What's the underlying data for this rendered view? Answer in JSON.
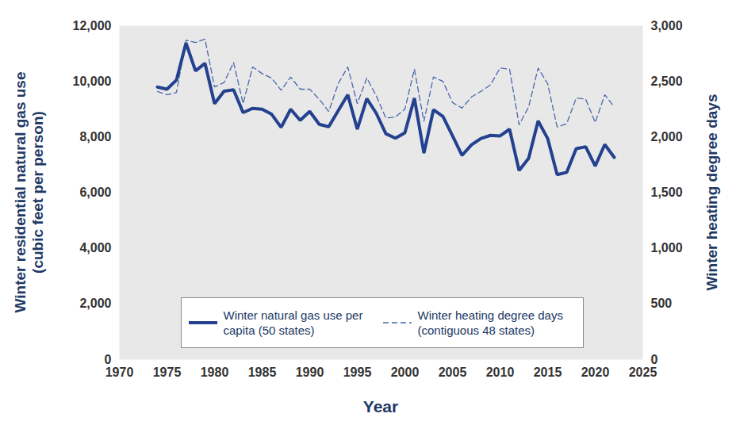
{
  "chart_data": {
    "type": "line",
    "x_label": "Year",
    "y_label": "Winter residential natural gas use (cubic feet per person)",
    "y2_label": "Winter heating degree days",
    "x": [
      1974,
      1975,
      1976,
      1977,
      1978,
      1979,
      1980,
      1981,
      1982,
      1983,
      1984,
      1985,
      1986,
      1987,
      1988,
      1989,
      1990,
      1991,
      1992,
      1993,
      1994,
      1995,
      1996,
      1997,
      1998,
      1999,
      2000,
      2001,
      2002,
      2003,
      2004,
      2005,
      2006,
      2007,
      2008,
      2009,
      2010,
      2011,
      2012,
      2013,
      2014,
      2015,
      2016,
      2017,
      2018,
      2019,
      2020,
      2021,
      2022
    ],
    "series": [
      {
        "name": "Winter natural gas use per capita (50 states)",
        "color": "#23418f",
        "line_style": "solid",
        "axis": "y",
        "values": [
          9800,
          9720,
          10050,
          11380,
          10380,
          10650,
          9200,
          9650,
          9700,
          8880,
          9030,
          9000,
          8820,
          8350,
          9000,
          8600,
          8920,
          8460,
          8370,
          8950,
          9520,
          8280,
          9380,
          8850,
          8120,
          7960,
          8150,
          9400,
          7420,
          8980,
          8740,
          8050,
          7340,
          7720,
          7950,
          8060,
          8040,
          8280,
          6800,
          7230,
          8580,
          7950,
          6650,
          6730,
          7580,
          7650,
          6960,
          7730,
          7270
        ]
      },
      {
        "name": "Winter heating degree days (contiguous 48 states)",
        "color": "#4a67ad",
        "line_style": "dashed",
        "axis": "y2",
        "values": [
          2410,
          2380,
          2400,
          2870,
          2850,
          2880,
          2450,
          2490,
          2670,
          2300,
          2630,
          2570,
          2530,
          2420,
          2540,
          2430,
          2430,
          2340,
          2230,
          2480,
          2630,
          2300,
          2530,
          2370,
          2170,
          2180,
          2250,
          2610,
          2140,
          2540,
          2500,
          2310,
          2260,
          2360,
          2410,
          2470,
          2620,
          2610,
          2110,
          2270,
          2620,
          2480,
          2090,
          2120,
          2350,
          2340,
          2130,
          2380,
          2270
        ]
      }
    ],
    "xlim": [
      1970,
      2025
    ],
    "xticks": [
      1970,
      1975,
      1980,
      1985,
      1990,
      1995,
      2000,
      2005,
      2010,
      2015,
      2020,
      2025
    ],
    "ylim": [
      0,
      12000
    ],
    "yticks": [
      0,
      {
        "value": 2000,
        "label": "2,000"
      },
      {
        "value": 4000,
        "label": "4,000"
      },
      {
        "value": 6000,
        "label": "6,000"
      },
      {
        "value": 8000,
        "label": "8,000"
      },
      {
        "value": 10000,
        "label": "10,000"
      },
      {
        "value": 12000,
        "label": "12,000"
      }
    ],
    "y2lim": [
      0,
      3000
    ],
    "y2ticks": [
      0,
      500,
      {
        "value": 1000,
        "label": "1,000"
      },
      {
        "value": 1500,
        "label": "1,500"
      },
      {
        "value": 2000,
        "label": "2,000"
      },
      {
        "value": 2500,
        "label": "2,500"
      },
      {
        "value": 3000,
        "label": "3,000"
      }
    ],
    "grid": false,
    "legend": "bottom"
  }
}
